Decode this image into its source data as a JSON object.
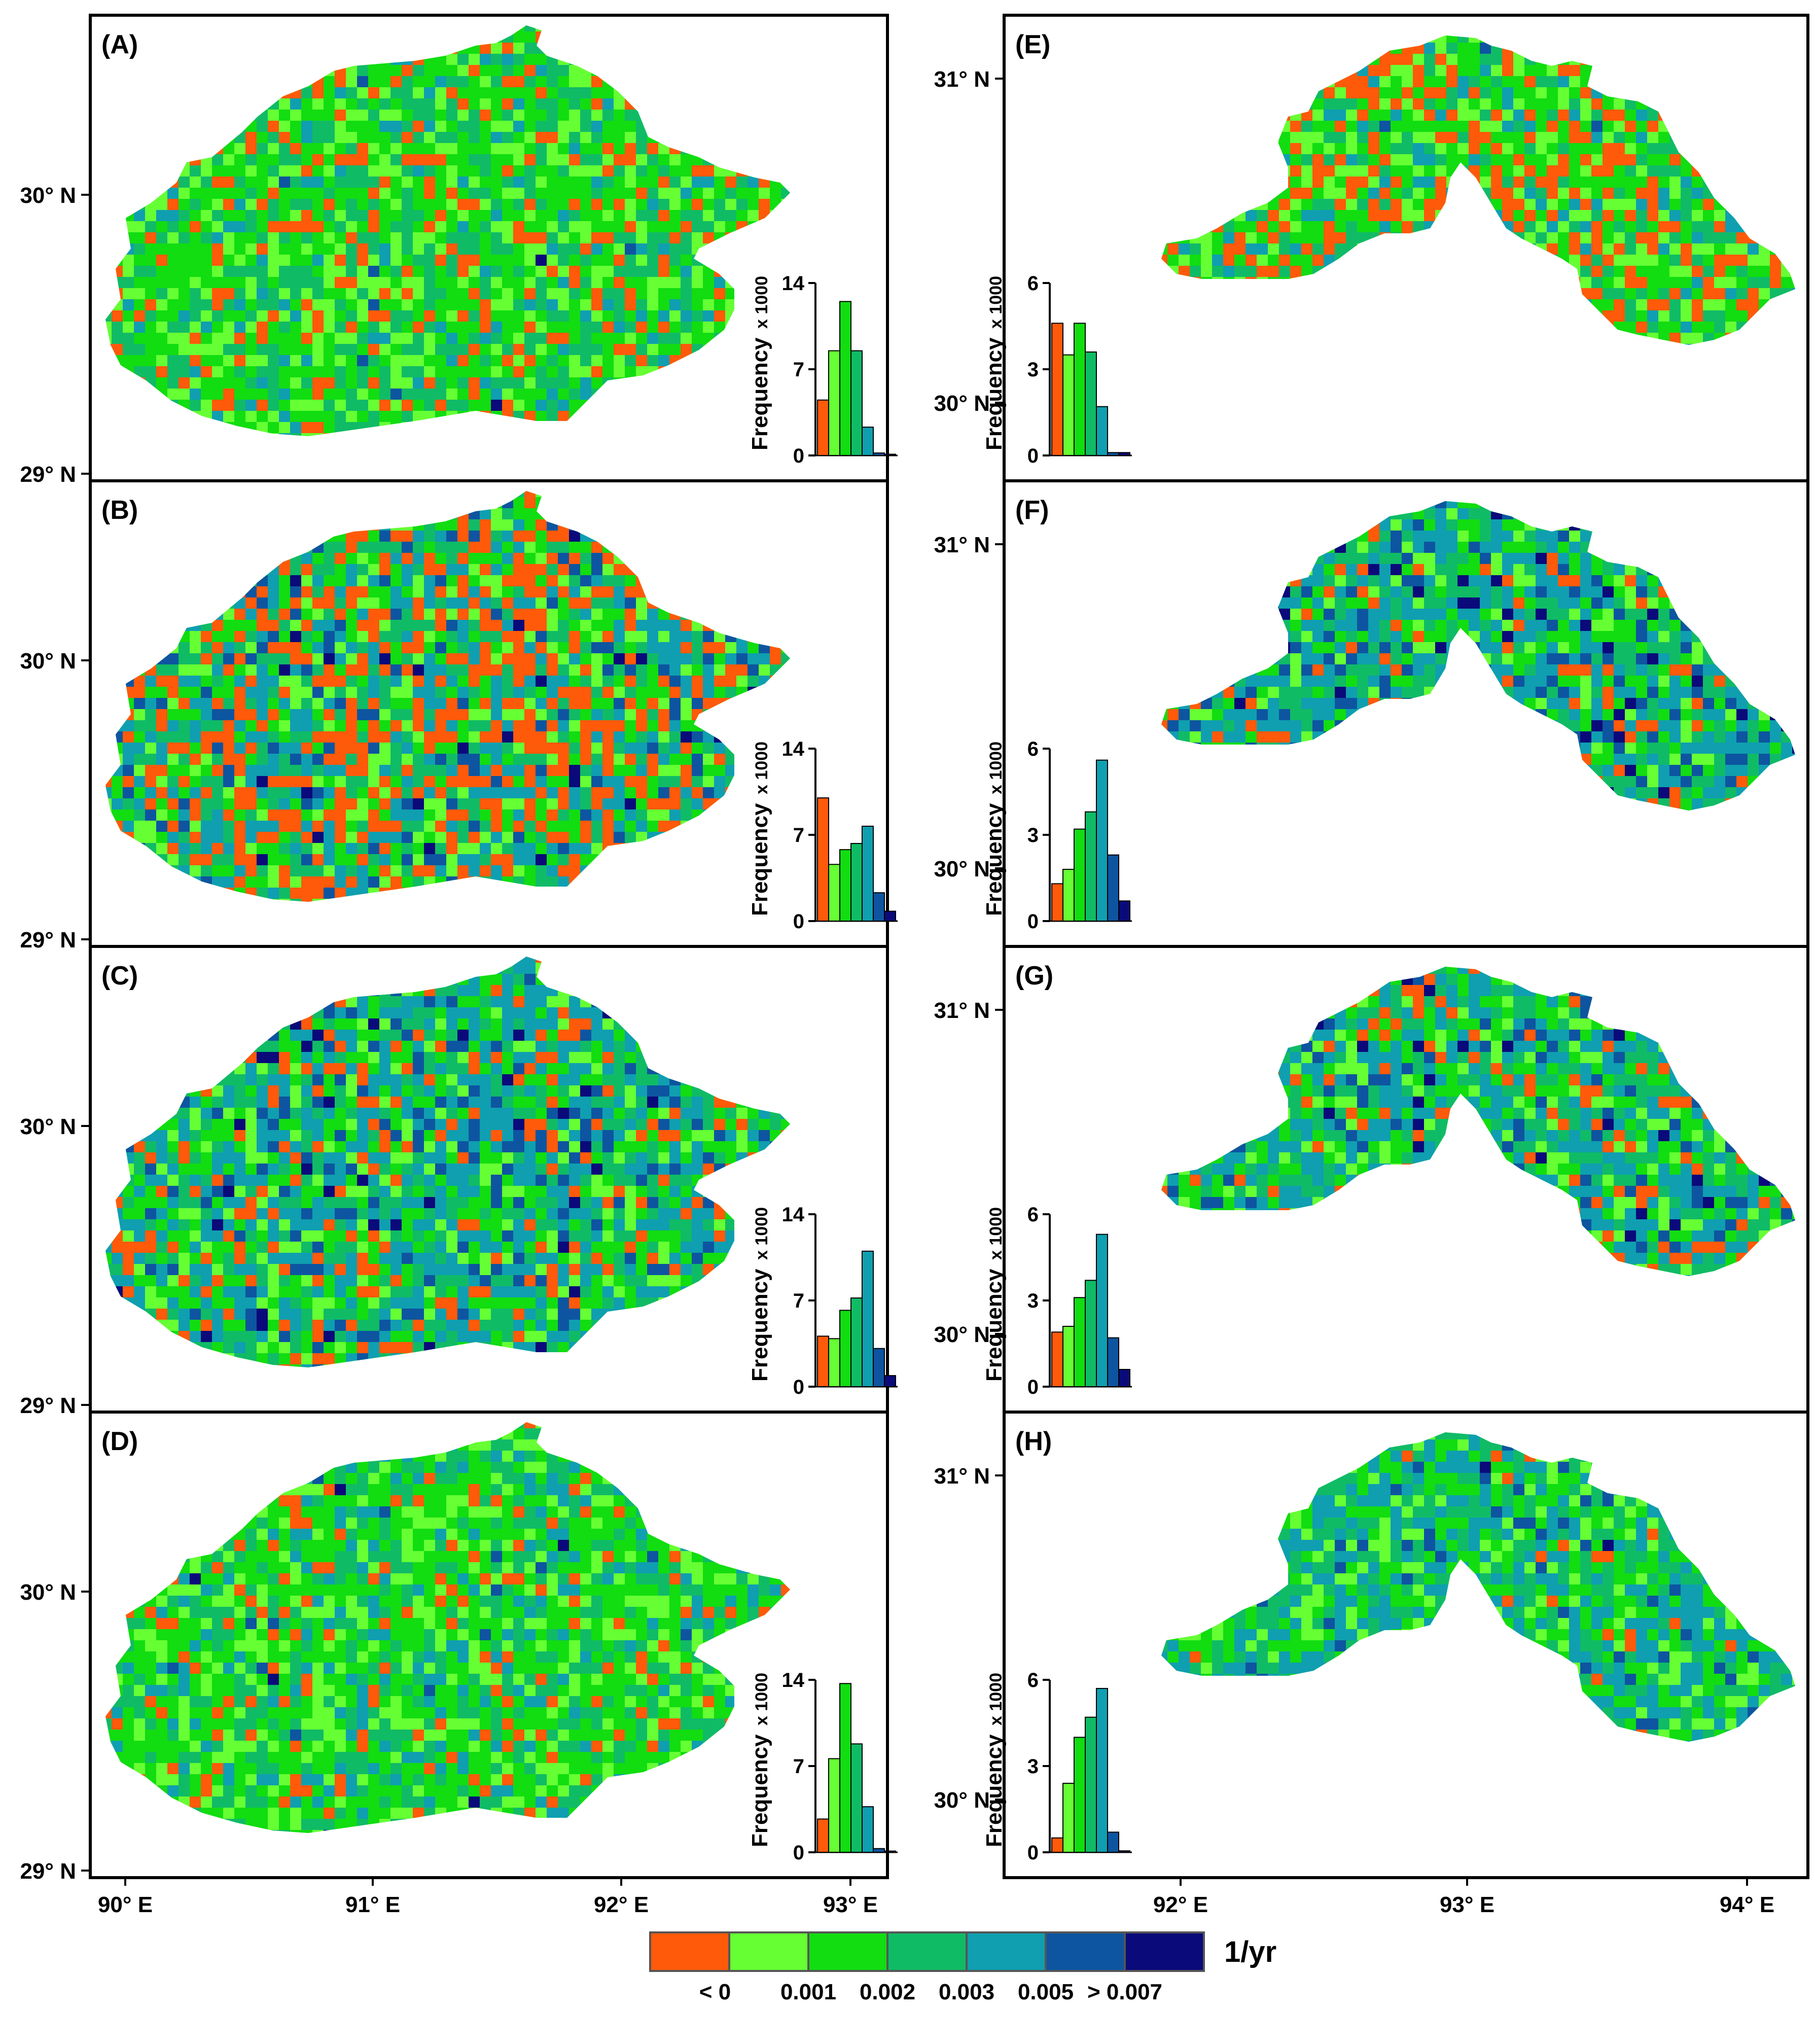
{
  "colors": {
    "c0": "#ff5a0a",
    "c1": "#66ff33",
    "c2": "#11dd11",
    "c3": "#10bb66",
    "c4": "#0f9fb0",
    "c5": "#0d55a0",
    "c6": "#0a0a7a",
    "frame": "#000000"
  },
  "legend": {
    "unit": "1/yr",
    "class_labels": [
      "< 0",
      "0.001",
      "0.002",
      "0.003",
      "0.005",
      "> 0.007"
    ]
  },
  "left_column": {
    "lat_labels": [
      "30° N",
      "29° N"
    ],
    "lon_labels": [
      "90° E",
      "91° E",
      "92° E",
      "93° E"
    ]
  },
  "right_column": {
    "lat_labels": [
      "31° N",
      "30° N"
    ],
    "lon_labels": [
      "92° E",
      "93° E",
      "94° E"
    ]
  },
  "hist_common": {
    "ylabel": "Frequency",
    "multiplier": "x 1000"
  },
  "panels": [
    {
      "id": "A",
      "label": "(A)",
      "hist": {
        "ticks": [
          "0",
          "7",
          "14"
        ],
        "max": 14,
        "values": [
          4.5,
          8.5,
          12.5,
          8.5,
          2.3,
          0.2,
          0.1
        ]
      }
    },
    {
      "id": "B",
      "label": "(B)",
      "hist": {
        "ticks": [
          "0",
          "7",
          "14"
        ],
        "max": 14,
        "values": [
          10,
          4.6,
          5.8,
          6.3,
          7.7,
          2.3,
          0.8
        ]
      }
    },
    {
      "id": "C",
      "label": "(C)",
      "hist": {
        "ticks": [
          "0",
          "7",
          "14"
        ],
        "max": 14,
        "values": [
          4.1,
          3.9,
          6.2,
          7.2,
          11.0,
          3.1,
          0.9
        ]
      }
    },
    {
      "id": "D",
      "label": "(D)",
      "hist": {
        "ticks": [
          "0",
          "7",
          "14"
        ],
        "max": 14,
        "values": [
          2.7,
          7.6,
          13.7,
          8.8,
          3.7,
          0.3,
          0.1
        ]
      }
    },
    {
      "id": "E",
      "label": "(E)",
      "hist": {
        "ticks": [
          "0",
          "3",
          "6"
        ],
        "max": 6,
        "values": [
          4.6,
          3.5,
          4.6,
          3.6,
          1.7,
          0.1,
          0.1
        ]
      }
    },
    {
      "id": "F",
      "label": "(F)",
      "hist": {
        "ticks": [
          "0",
          "3",
          "6"
        ],
        "max": 6,
        "values": [
          1.3,
          1.8,
          3.2,
          3.8,
          5.6,
          2.3,
          0.7
        ]
      }
    },
    {
      "id": "G",
      "label": "(G)",
      "hist": {
        "ticks": [
          "0",
          "3",
          "6"
        ],
        "max": 6,
        "values": [
          1.9,
          2.1,
          3.1,
          3.7,
          5.3,
          1.7,
          0.6
        ]
      }
    },
    {
      "id": "H",
      "label": "(H)",
      "hist": {
        "ticks": [
          "0",
          "3",
          "6"
        ],
        "max": 6,
        "values": [
          0.5,
          2.4,
          4.0,
          4.7,
          5.7,
          0.7,
          0.05
        ]
      }
    }
  ]
}
